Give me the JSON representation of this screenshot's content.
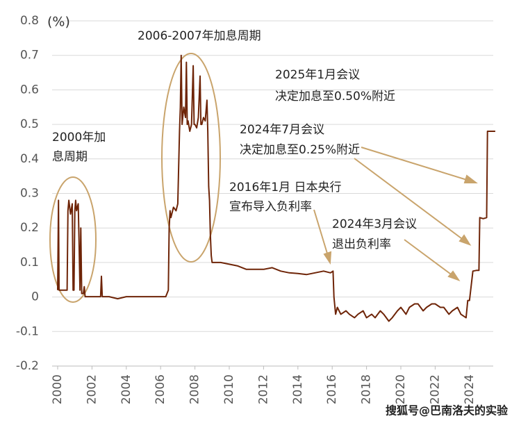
{
  "chart_data": {
    "type": "line",
    "y_unit": "(%)",
    "xlim": [
      2000,
      2025.5
    ],
    "ylim": [
      -0.2,
      0.8
    ],
    "xticks": [
      2000,
      2002,
      2004,
      2006,
      2008,
      2010,
      2012,
      2014,
      2016,
      2018,
      2020,
      2022,
      2024
    ],
    "yticks": [
      -0.2,
      -0.1,
      0,
      0.1,
      0.2,
      0.3,
      0.4,
      0.5,
      0.6,
      0.7,
      0.8
    ],
    "grid": true,
    "series": [
      {
        "color": "#6e2407",
        "x": [
          2000.0,
          2000.05,
          2000.08,
          2000.3,
          2000.55,
          2000.6,
          2000.65,
          2000.75,
          2000.85,
          2000.9,
          2000.95,
          2001.0,
          2001.05,
          2001.1,
          2001.2,
          2001.25,
          2001.3,
          2001.35,
          2001.4,
          2001.5,
          2001.55,
          2001.6,
          2002.0,
          2002.5,
          2002.55,
          2002.6,
          2003.0,
          2003.5,
          2004.0,
          2004.5,
          2005.0,
          2005.5,
          2006.0,
          2006.3,
          2006.45,
          2006.5,
          2006.55,
          2006.6,
          2006.75,
          2006.9,
          2007.0,
          2007.1,
          2007.15,
          2007.2,
          2007.25,
          2007.35,
          2007.45,
          2007.5,
          2007.55,
          2007.6,
          2007.7,
          2007.8,
          2007.9,
          2007.95,
          2008.0,
          2008.1,
          2008.2,
          2008.3,
          2008.35,
          2008.4,
          2008.5,
          2008.6,
          2008.7,
          2008.75,
          2008.8,
          2008.85,
          2008.9,
          2008.95,
          2009.0,
          2009.5,
          2010.0,
          2010.5,
          2011.0,
          2011.5,
          2012.0,
          2012.5,
          2013.0,
          2013.5,
          2014.0,
          2014.5,
          2015.0,
          2015.5,
          2015.9,
          2016.05,
          2016.1,
          2016.2,
          2016.3,
          2016.5,
          2016.8,
          2017.0,
          2017.3,
          2017.5,
          2017.8,
          2018.0,
          2018.3,
          2018.5,
          2018.8,
          2019.0,
          2019.3,
          2019.5,
          2019.8,
          2020.0,
          2020.3,
          2020.5,
          2020.8,
          2021.0,
          2021.3,
          2021.5,
          2021.8,
          2022.0,
          2022.3,
          2022.5,
          2022.8,
          2023.0,
          2023.3,
          2023.5,
          2023.8,
          2023.9,
          2024.0,
          2024.2,
          2024.4,
          2024.55,
          2024.6,
          2024.8,
          2025.0,
          2025.05,
          2025.5
        ],
        "values": [
          0.02,
          0.28,
          0.02,
          0.02,
          0.02,
          0.25,
          0.28,
          0.24,
          0.27,
          0.02,
          0.02,
          0.25,
          0.28,
          0.25,
          0.27,
          0.15,
          0.02,
          0.2,
          0.01,
          0.01,
          0.03,
          0.001,
          0.001,
          0.001,
          0.06,
          0.001,
          0.001,
          -0.005,
          0.001,
          0.001,
          0.001,
          0.001,
          0.001,
          0.001,
          0.02,
          0.2,
          0.25,
          0.23,
          0.26,
          0.25,
          0.27,
          0.48,
          0.55,
          0.7,
          0.5,
          0.55,
          0.52,
          0.68,
          0.5,
          0.51,
          0.48,
          0.5,
          0.67,
          0.5,
          0.5,
          0.49,
          0.52,
          0.64,
          0.5,
          0.5,
          0.52,
          0.51,
          0.57,
          0.48,
          0.32,
          0.28,
          0.18,
          0.12,
          0.1,
          0.1,
          0.095,
          0.09,
          0.08,
          0.08,
          0.08,
          0.085,
          0.075,
          0.07,
          0.068,
          0.065,
          0.07,
          0.075,
          0.07,
          0.075,
          0.0,
          -0.05,
          -0.03,
          -0.05,
          -0.04,
          -0.05,
          -0.06,
          -0.05,
          -0.04,
          -0.06,
          -0.05,
          -0.06,
          -0.04,
          -0.05,
          -0.07,
          -0.06,
          -0.04,
          -0.03,
          -0.05,
          -0.03,
          -0.02,
          -0.02,
          -0.04,
          -0.03,
          -0.02,
          -0.02,
          -0.03,
          -0.03,
          -0.05,
          -0.04,
          -0.03,
          -0.05,
          -0.06,
          -0.01,
          -0.01,
          0.075,
          0.077,
          0.077,
          0.23,
          0.227,
          0.23,
          0.48,
          0.48
        ]
      }
    ],
    "annotations": [
      [
        "2006-2007年加息周期"
      ],
      [
        "2000年加",
        "息周期"
      ],
      [
        "2025年1月会议",
        "决定加息至0.50%附近"
      ],
      [
        "2024年7月会议",
        "决定加息至0.25%附近"
      ],
      [
        "2016年1月 日本央行",
        "宣布导入负利率"
      ],
      [
        "2024年3月会议",
        "退出负利率"
      ]
    ]
  },
  "watermark": "搜狐号@巴南洛夫的实验"
}
